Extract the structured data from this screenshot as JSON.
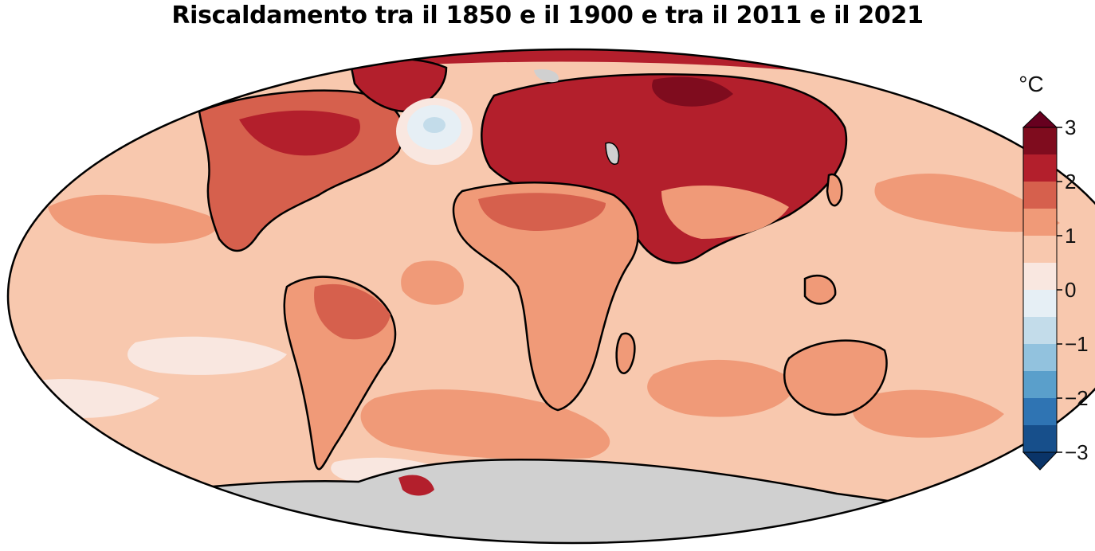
{
  "title": "Riscaldamento tra il 1850 e il 1900 e tra il 2011 e il 2021",
  "map": {
    "projection": "Mollweide",
    "no_data_color": "#d0d0d0",
    "coastline_color": "#000000"
  },
  "colorbar": {
    "unit": "°C",
    "min": -3,
    "max": 3,
    "step": 0.5,
    "extend": "both",
    "tick_labels": [
      "3",
      "2",
      "1",
      "0",
      "−1",
      "−2",
      "−3"
    ],
    "bins": [
      {
        "from": 2.5,
        "to": 3.0,
        "color": "#7f0c1e"
      },
      {
        "from": 2.0,
        "to": 2.5,
        "color": "#b31f2c"
      },
      {
        "from": 1.5,
        "to": 2.0,
        "color": "#d6604d"
      },
      {
        "from": 1.0,
        "to": 1.5,
        "color": "#f09a78"
      },
      {
        "from": 0.5,
        "to": 1.0,
        "color": "#f8c8ae"
      },
      {
        "from": 0.0,
        "to": 0.5,
        "color": "#f9e7e0"
      },
      {
        "from": -0.5,
        "to": 0.0,
        "color": "#e6eff5"
      },
      {
        "from": -1.0,
        "to": -0.5,
        "color": "#c3dcea"
      },
      {
        "from": -1.5,
        "to": -1.0,
        "color": "#92c2de"
      },
      {
        "from": -2.0,
        "to": -1.5,
        "color": "#5a9fcb"
      },
      {
        "from": -2.5,
        "to": -2.0,
        "color": "#2f74b3"
      },
      {
        "from": -3.0,
        "to": -2.5,
        "color": "#174f8b"
      }
    ],
    "over_color": "#67001f",
    "under_color": "#0a3468"
  }
}
